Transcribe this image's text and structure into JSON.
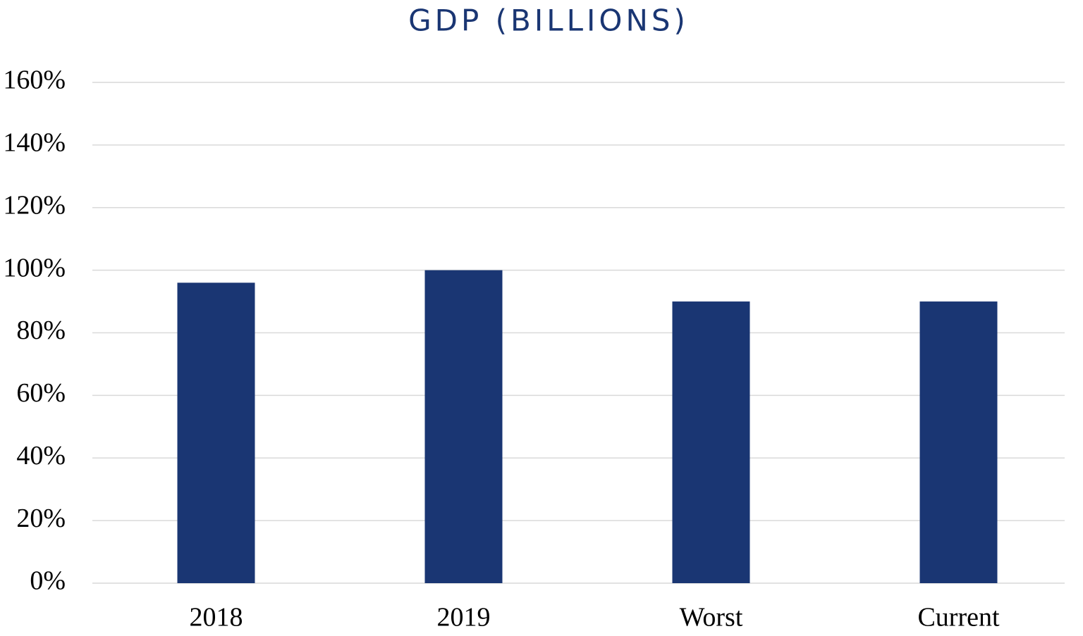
{
  "chart_data": {
    "type": "bar",
    "title": "GDP (BILLIONS)",
    "categories": [
      "2018",
      "2019",
      "Worst",
      "Current"
    ],
    "values": [
      96,
      100,
      90,
      90
    ],
    "color": "#1a3673",
    "ylim": [
      0,
      160
    ],
    "yticks": [
      {
        "value": 0,
        "label": "0%"
      },
      {
        "value": 20,
        "label": "20%"
      },
      {
        "value": 40,
        "label": "40%"
      },
      {
        "value": 60,
        "label": "60%"
      },
      {
        "value": 80,
        "label": "80%"
      },
      {
        "value": 100,
        "label": "100%"
      },
      {
        "value": 120,
        "label": "120%"
      },
      {
        "value": 140,
        "label": "140%"
      },
      {
        "value": 160,
        "label": "160%"
      }
    ],
    "grid": true
  }
}
